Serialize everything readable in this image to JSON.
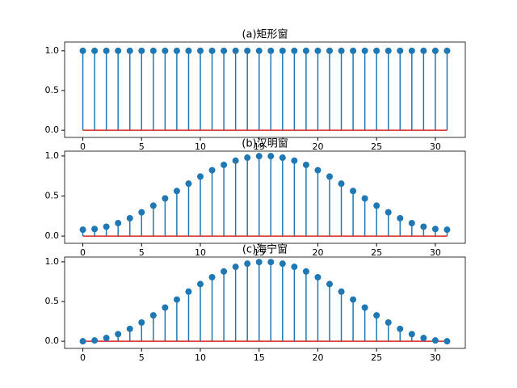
{
  "chart_data": [
    {
      "type": "stem",
      "title": "(a)矩形窗",
      "x": [
        0,
        1,
        2,
        3,
        4,
        5,
        6,
        7,
        8,
        9,
        10,
        11,
        12,
        13,
        14,
        15,
        16,
        17,
        18,
        19,
        20,
        21,
        22,
        23,
        24,
        25,
        26,
        27,
        28,
        29,
        30,
        31
      ],
      "values": [
        1,
        1,
        1,
        1,
        1,
        1,
        1,
        1,
        1,
        1,
        1,
        1,
        1,
        1,
        1,
        1,
        1,
        1,
        1,
        1,
        1,
        1,
        1,
        1,
        1,
        1,
        1,
        1,
        1,
        1,
        1,
        1
      ],
      "color": "#1f77b4",
      "baseline_color": "#d62728",
      "xlim": [
        -1.55,
        32.55
      ],
      "xticks": [
        0,
        5,
        10,
        15,
        20,
        25,
        30
      ],
      "ylim": [
        -0.09,
        1.11
      ],
      "yticks": [
        {
          "value": 0,
          "label": "0.0"
        },
        {
          "value": 0.5,
          "label": "0.5"
        },
        {
          "value": 1,
          "label": "1.0"
        }
      ]
    },
    {
      "type": "stem",
      "title": "(b)汉明窗",
      "x": [
        0,
        1,
        2,
        3,
        4,
        5,
        6,
        7,
        8,
        9,
        10,
        11,
        12,
        13,
        14,
        15,
        16,
        17,
        18,
        19,
        20,
        21,
        22,
        23,
        24,
        25,
        26,
        27,
        28,
        29,
        30,
        31
      ],
      "values": [
        0.08,
        0.089,
        0.117,
        0.162,
        0.223,
        0.297,
        0.38,
        0.47,
        0.563,
        0.655,
        0.743,
        0.822,
        0.889,
        0.942,
        0.979,
        0.998,
        0.998,
        0.979,
        0.942,
        0.889,
        0.822,
        0.743,
        0.655,
        0.563,
        0.47,
        0.38,
        0.297,
        0.223,
        0.162,
        0.117,
        0.089,
        0.08
      ],
      "color": "#1f77b4",
      "baseline_color": "#d62728",
      "xlim": [
        -1.55,
        32.55
      ],
      "xticks": [
        0,
        5,
        10,
        15,
        20,
        25,
        30
      ],
      "ylim": [
        -0.09,
        1.06
      ],
      "yticks": [
        {
          "value": 0,
          "label": "0.0"
        },
        {
          "value": 0.5,
          "label": "0.5"
        },
        {
          "value": 1,
          "label": "1.0"
        }
      ]
    },
    {
      "type": "stem",
      "title": "(c)海宁窗",
      "x": [
        0,
        1,
        2,
        3,
        4,
        5,
        6,
        7,
        8,
        9,
        10,
        11,
        12,
        13,
        14,
        15,
        16,
        17,
        18,
        19,
        20,
        21,
        22,
        23,
        24,
        25,
        26,
        27,
        28,
        29,
        30,
        31
      ],
      "values": [
        0,
        0.01,
        0.041,
        0.09,
        0.156,
        0.236,
        0.326,
        0.424,
        0.525,
        0.625,
        0.72,
        0.806,
        0.879,
        0.937,
        0.977,
        0.997,
        0.997,
        0.977,
        0.937,
        0.879,
        0.806,
        0.72,
        0.625,
        0.525,
        0.424,
        0.326,
        0.236,
        0.156,
        0.09,
        0.041,
        0.01,
        0
      ],
      "color": "#1f77b4",
      "baseline_color": "#d62728",
      "xlim": [
        -1.55,
        32.55
      ],
      "xticks": [
        0,
        5,
        10,
        15,
        20,
        25,
        30
      ],
      "ylim": [
        -0.09,
        1.06
      ],
      "yticks": [
        {
          "value": 0,
          "label": "0.0"
        },
        {
          "value": 0.5,
          "label": "0.5"
        },
        {
          "value": 1,
          "label": "1.0"
        }
      ]
    }
  ]
}
